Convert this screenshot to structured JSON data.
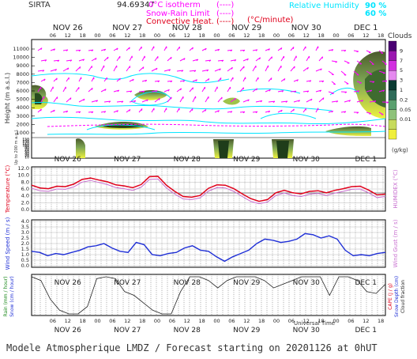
{
  "header": {
    "station": "SIRTA",
    "coords": "94.69347",
    "legend_isotherm": "0°C isotherm",
    "legend_isotherm_dash": "(----)",
    "legend_snowrain": "Snow-Rain Limit",
    "legend_snowrain_dash": "(----)",
    "legend_convective": "Convective Heat.",
    "legend_convective_unit": "(°C/minute)",
    "legend_convective_dash": "(----)",
    "rh_label": "Relative Humidity",
    "rh_90": "90 %",
    "rh_60": "60 %"
  },
  "footer": {
    "title": "Modele Atmospherique LMDZ / Forecast starting on 20201126 at 0hUT",
    "xaxis": "Universal Time"
  },
  "colors": {
    "temperature": "#e0001b",
    "humidex": "#c86fd0",
    "wind": "#1f2fd6",
    "cloud_high": "#e8e84a",
    "isotherm": "#ff00ff",
    "rh": "#00e5ff"
  },
  "chart_data": [
    {
      "type": "heatmap",
      "name": "cloud-cross-section",
      "title": "Clouds",
      "unit": "(g/kg)",
      "ylabel": "Height (m a.s.l.)",
      "ylabel_low": "Up to 200 m a.g.l.",
      "yticks_upper": [
        1000,
        2000,
        3000,
        4000,
        5000,
        6000,
        7000,
        8000,
        9000,
        10000,
        11000
      ],
      "yticks_lower": [
        10,
        20,
        30,
        40,
        50,
        60,
        70,
        80,
        90,
        100,
        110,
        120,
        130,
        140,
        150
      ],
      "days": [
        "NOV 26",
        "NOV 27",
        "NOV 28",
        "NOV 29",
        "NOV 30",
        "DEC  1"
      ],
      "hours": [
        "06",
        "12",
        "18",
        "00"
      ],
      "colorbar_labels": [
        "9",
        "7",
        "5",
        "3",
        "1",
        "0.2",
        "0.05",
        "0.01"
      ],
      "colorbar_colors": [
        "#4a0073",
        "#9b17b0",
        "#d22fe0",
        "#e58aef",
        "#0b3b33",
        "#2e6b59",
        "#5aa06f",
        "#8ec27a",
        "#c7db5c",
        "#f0ef3c"
      ]
    },
    {
      "type": "line",
      "name": "temperature",
      "ylabel": "Temperature (°C)",
      "ylabel_right": "HUMIDEX (°C)",
      "ylim": [
        0,
        12
      ],
      "yticks": [
        "12.0",
        "10.0",
        "8.0",
        "6.0",
        "4.0",
        "2.0",
        "0.0"
      ],
      "series": [
        {
          "name": "Temperature",
          "values": [
            7.1,
            6.3,
            6.1,
            6.8,
            6.7,
            7.4,
            8.8,
            9.2,
            8.6,
            8.1,
            7.2,
            6.9,
            6.4,
            7.3,
            9.6,
            9.7,
            7.1,
            5.3,
            3.8,
            3.6,
            4.1,
            6.2,
            7.2,
            7.1,
            6.1,
            4.6,
            3.2,
            2.4,
            2.9,
            4.9,
            5.6,
            4.9,
            4.6,
            5.3,
            5.5,
            4.9,
            5.6,
            6.1,
            6.7,
            6.8,
            5.7,
            4.3,
            4.5
          ]
        },
        {
          "name": "HUMIDEX",
          "values": [
            6.2,
            5.5,
            5.3,
            6.0,
            5.9,
            6.6,
            8.0,
            8.5,
            7.9,
            7.3,
            6.4,
            6.1,
            5.6,
            6.5,
            8.8,
            8.9,
            6.3,
            4.5,
            3.1,
            2.9,
            3.4,
            5.4,
            6.4,
            6.3,
            5.3,
            3.8,
            2.4,
            1.7,
            2.2,
            4.1,
            4.8,
            4.1,
            3.8,
            4.5,
            4.7,
            4.1,
            4.8,
            5.3,
            5.9,
            6.0,
            4.9,
            3.5,
            3.8
          ]
        }
      ]
    },
    {
      "type": "line",
      "name": "wind",
      "ylabel": "Wind Speed (m / s)",
      "ylabel_right": "Wind Gust (m / s)",
      "ylim": [
        0,
        4
      ],
      "yticks": [
        "4.0",
        "3.5",
        "3.0",
        "2.5",
        "2.0",
        "1.5",
        "1.0",
        "0.5",
        "0.0"
      ],
      "series": [
        {
          "name": "Wind Speed",
          "values": [
            1.3,
            1.2,
            0.9,
            1.1,
            1.0,
            1.2,
            1.4,
            1.7,
            1.8,
            2.0,
            1.6,
            1.3,
            1.2,
            2.1,
            1.9,
            1.0,
            0.9,
            1.1,
            1.2,
            1.6,
            1.8,
            1.4,
            1.3,
            0.8,
            0.4,
            0.8,
            1.1,
            1.4,
            2.0,
            2.4,
            2.3,
            2.1,
            2.2,
            2.4,
            2.9,
            2.8,
            2.5,
            2.7,
            2.4,
            1.4,
            0.9,
            1.0,
            0.9,
            1.1,
            1.2
          ]
        }
      ]
    },
    {
      "type": "line",
      "name": "precipitation",
      "ylabel_left": "Rain (mm / hour)",
      "ylabel_left2": "Snow (cm / hour)",
      "ylabel_right": "CAPE (J / g)",
      "ylabel_right2": "Snow Depth (cm)",
      "ylabel_right3": "Cloud fraction",
      "series": [
        {
          "name": "Cloud fraction",
          "values": [
            1.0,
            0.9,
            0.4,
            0.1,
            0.0,
            0.0,
            0.2,
            0.95,
            1.0,
            0.95,
            0.6,
            0.5,
            0.3,
            0.1,
            0.0,
            0.0,
            0.6,
            1.0,
            1.0,
            0.9,
            0.7,
            0.9,
            1.0,
            1.0,
            1.0,
            0.9,
            0.7,
            0.8,
            0.9,
            1.0,
            1.0,
            1.0,
            0.5,
            1.0,
            1.0,
            0.9,
            0.6,
            0.55,
            0.8
          ]
        }
      ]
    }
  ]
}
